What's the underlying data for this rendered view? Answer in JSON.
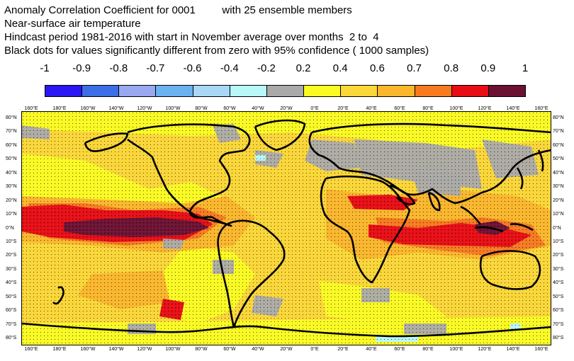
{
  "title": {
    "line1": "Anomaly Correlation Coefficient for 0001         with 25 ensemble members",
    "line2": "Near-surface air temperature",
    "line3": "Hindcast period 1981-2016 with start in November average over months  2 to  4",
    "line4": "Black dots for values significantly different from zero with 95% confidence ( 1000 samples)"
  },
  "colorbar": {
    "labels": [
      "-1",
      "-0.9",
      "-0.8",
      "-0.7",
      "-0.6",
      "-0.4",
      "-0.2",
      "0.2",
      "0.4",
      "0.6",
      "0.7",
      "0.8",
      "0.9",
      "1"
    ],
    "colors": [
      "#2b16f4",
      "#3c6ee6",
      "#9aa8f2",
      "#6bb2f0",
      "#a8d8f6",
      "#b8f8f8",
      "#a9a9a9",
      "#fbfb22",
      "#fbd737",
      "#fbb72b",
      "#f77a1f",
      "#e80d14",
      "#6d1132"
    ]
  },
  "axes": {
    "lon_labels": [
      "160°E",
      "180°E",
      "160°W",
      "140°W",
      "120°W",
      "100°W",
      "80°W",
      "60°W",
      "40°W",
      "20°W",
      "0°E",
      "20°E",
      "40°E",
      "60°E",
      "80°E",
      "100°E",
      "120°E",
      "140°E",
      "160°E"
    ],
    "lat_labels": [
      "80°N",
      "70°N",
      "60°N",
      "50°N",
      "40°N",
      "30°N",
      "20°N",
      "10°N",
      "0°N",
      "10°S",
      "20°S",
      "30°S",
      "40°S",
      "50°S",
      "60°S",
      "70°S",
      "80°S"
    ]
  },
  "map": {
    "field": "Anomaly Correlation Coefficient",
    "variable": "Near-surface air temperature",
    "projection": "cylindrical equidistant"
  }
}
